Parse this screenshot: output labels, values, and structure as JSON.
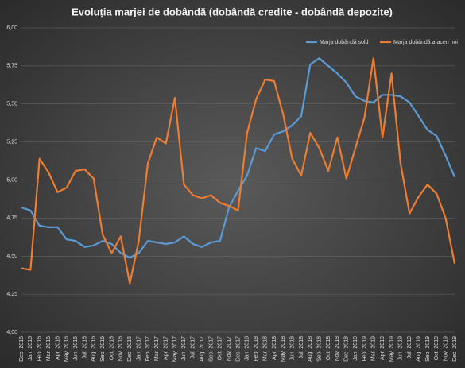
{
  "chart_data": {
    "type": "line",
    "title": "Evoluția marjei de dobândă (dobândă credite - dobândă depozite)",
    "categories": [
      "Dec. 2015",
      "Jan. 2016",
      "Feb. 2016",
      "Mar. 2016",
      "Apr. 2016",
      "May. 2016",
      "Jun. 2016",
      "Jul. 2016",
      "Aug. 2016",
      "Sep. 2016",
      "Oct. 2016",
      "Nov. 2016",
      "Dec. 2016",
      "Jan. 2017",
      "Feb. 2017",
      "Mar. 2017",
      "Apr. 2017",
      "May. 2017",
      "Jun. 2017",
      "Jul. 2017",
      "Aug. 2017",
      "Sep. 2017",
      "Oct. 2017",
      "Nov. 2017",
      "Dec. 2017",
      "Jan. 2018",
      "Feb. 2018",
      "Mar. 2018",
      "Apr. 2018",
      "May. 2018",
      "Jun. 2018",
      "Jul. 2018",
      "Aug. 2018",
      "Sep. 2018",
      "Oct. 2018",
      "Nov. 2018",
      "Dec. 2018",
      "Jan. 2019",
      "Feb. 2019",
      "Mar. 2019",
      "Apr. 2019",
      "May. 2019",
      "Jun. 2019",
      "Jul. 2019",
      "Aug. 2019",
      "Sep. 2019",
      "Oct. 2019",
      "Nov. 2019",
      "Dec. 2019"
    ],
    "series": [
      {
        "name": "Marja dobândă sold",
        "color": "#5b9bd5",
        "values": [
          4.82,
          4.8,
          4.7,
          4.69,
          4.69,
          4.61,
          4.6,
          4.56,
          4.57,
          4.6,
          4.58,
          4.52,
          4.49,
          4.52,
          4.6,
          4.59,
          4.58,
          4.59,
          4.63,
          4.58,
          4.56,
          4.59,
          4.6,
          4.82,
          4.93,
          5.03,
          5.21,
          5.19,
          5.3,
          5.32,
          5.36,
          5.42,
          5.76,
          5.8,
          5.75,
          5.7,
          5.64,
          5.55,
          5.52,
          5.51,
          5.56,
          5.56,
          5.55,
          5.51,
          5.42,
          5.33,
          5.29,
          5.16,
          5.02
        ]
      },
      {
        "name": "Marja dobândă afaceri noi",
        "color": "#ed7d31",
        "values": [
          4.42,
          4.41,
          5.14,
          5.05,
          4.92,
          4.95,
          5.06,
          5.07,
          5.01,
          4.64,
          4.52,
          4.63,
          4.32,
          4.6,
          5.11,
          5.28,
          5.24,
          5.54,
          4.97,
          4.9,
          4.88,
          4.9,
          4.85,
          4.83,
          4.8,
          5.31,
          5.53,
          5.66,
          5.65,
          5.43,
          5.14,
          5.03,
          5.31,
          5.21,
          5.06,
          5.28,
          5.01,
          5.21,
          5.41,
          5.8,
          5.28,
          5.7,
          5.11,
          4.78,
          4.89,
          4.97,
          4.91,
          4.75,
          4.45
        ]
      }
    ],
    "ylim": [
      4,
      6
    ],
    "yticks": [
      {
        "value": 4,
        "label": "4,00"
      },
      {
        "value": 4.25,
        "label": "4,25"
      },
      {
        "value": 4.5,
        "label": "4,50"
      },
      {
        "value": 4.75,
        "label": "4,75"
      },
      {
        "value": 5,
        "label": "5,00"
      },
      {
        "value": 5.25,
        "label": "5,25"
      },
      {
        "value": 5.5,
        "label": "5,50"
      },
      {
        "value": 5.75,
        "label": "5,75"
      },
      {
        "value": 6,
        "label": "6,00"
      }
    ],
    "grid": true,
    "legend": "top-right"
  }
}
